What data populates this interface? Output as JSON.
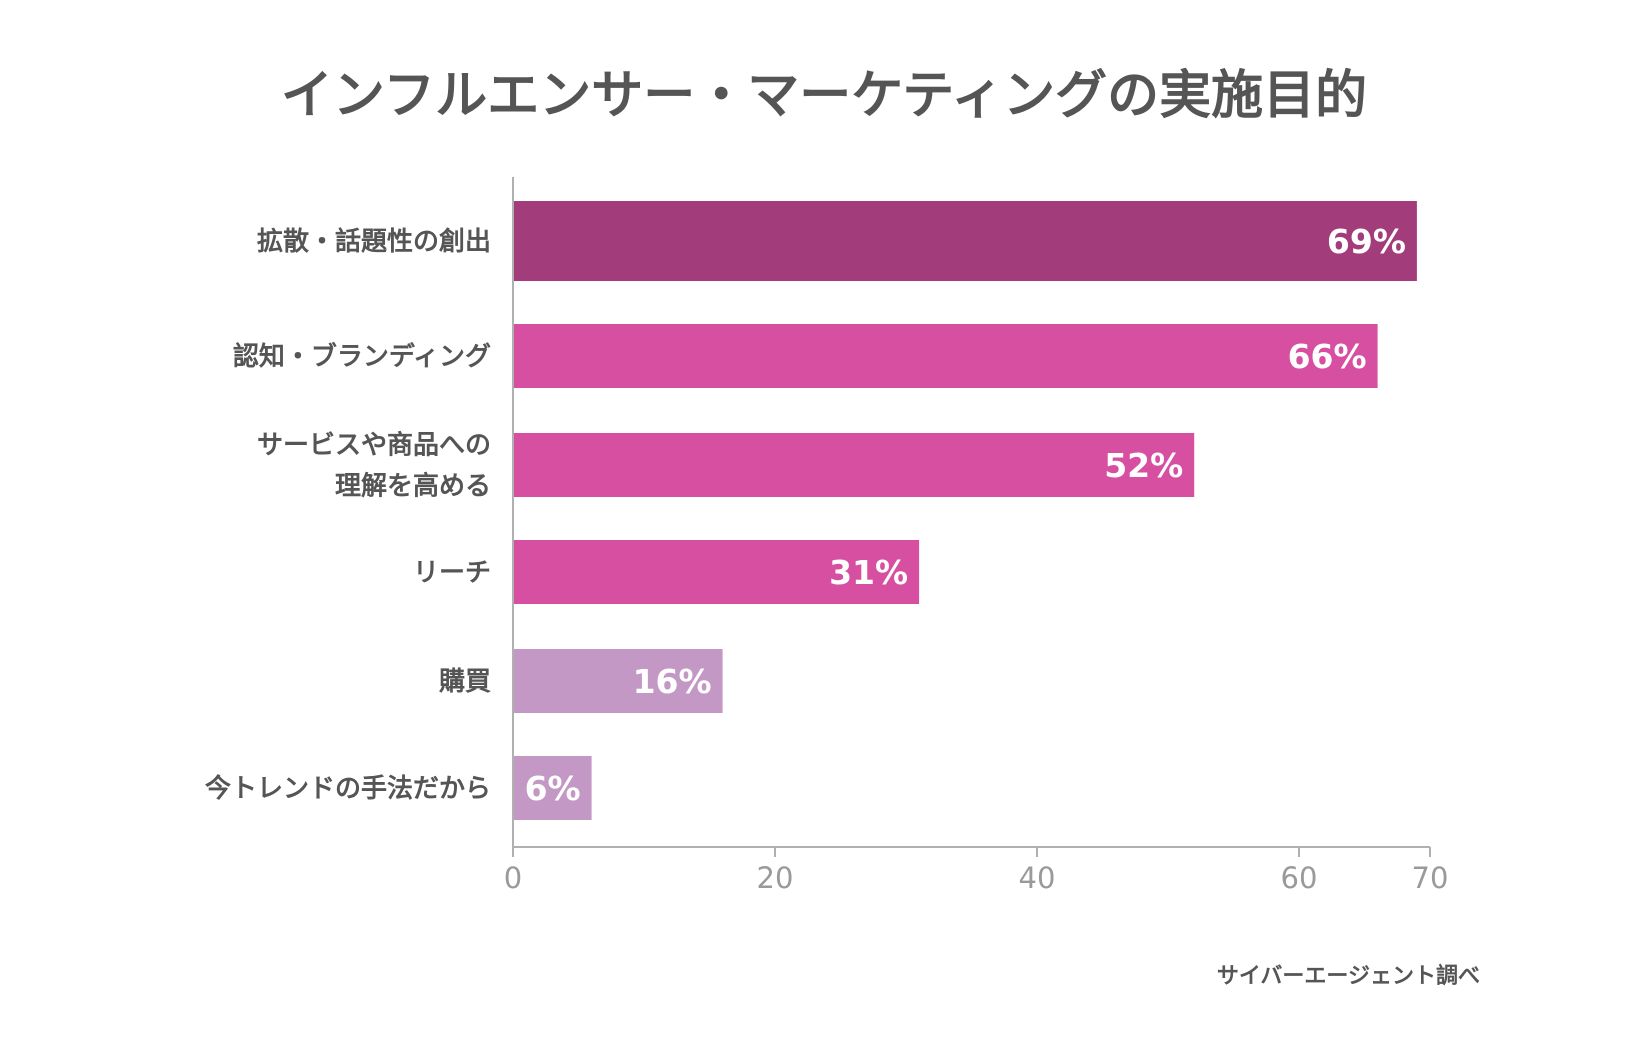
{
  "chart_data": {
    "type": "bar",
    "orientation": "horizontal",
    "title": "インフルエンサー・マーケティングの実施目的",
    "categories": [
      [
        "拡散・話題性の創出"
      ],
      [
        "認知・ブランディング"
      ],
      [
        "サービスや商品への",
        "理解を高める"
      ],
      [
        "リーチ"
      ],
      [
        "購買"
      ],
      [
        "今トレンドの手法だから"
      ]
    ],
    "values": [
      69,
      66,
      52,
      31,
      16,
      6
    ],
    "value_labels": [
      "69%",
      "66%",
      "52%",
      "31%",
      "16%",
      "6%"
    ],
    "colors": [
      "#a33c7b",
      "#d64fa1",
      "#d64fa1",
      "#d64fa1",
      "#c498c4",
      "#c498c4"
    ],
    "xlim": [
      0,
      70
    ],
    "xticks": [
      0,
      20,
      40,
      60,
      70
    ],
    "xtick_labels": [
      "0",
      "20",
      "40",
      "60",
      "70"
    ],
    "grid": false,
    "legend": "none",
    "source_note": "サイバーエージェント調べ"
  }
}
